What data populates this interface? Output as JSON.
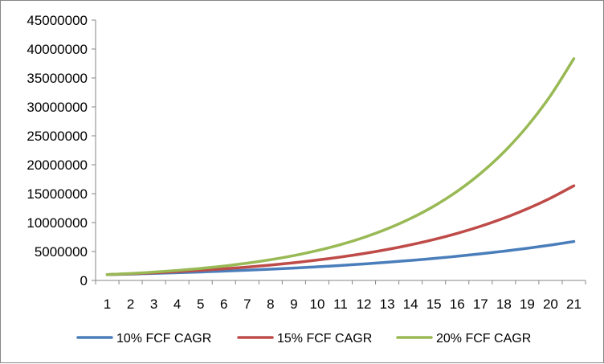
{
  "chart_data": {
    "type": "line",
    "title": "",
    "xlabel": "",
    "ylabel": "",
    "grid": false,
    "legend_position": "bottom",
    "ylim": [
      0,
      45000000
    ],
    "yticks": [
      0,
      5000000,
      10000000,
      15000000,
      20000000,
      25000000,
      30000000,
      35000000,
      40000000,
      45000000
    ],
    "categories": [
      1,
      2,
      3,
      4,
      5,
      6,
      7,
      8,
      9,
      10,
      11,
      12,
      13,
      14,
      15,
      16,
      17,
      18,
      19,
      20,
      21
    ],
    "series": [
      {
        "name": "10% FCF CAGR",
        "color": "#4a7ebb",
        "values": [
          1000000,
          1100000,
          1210000,
          1331000,
          1464100,
          1610510,
          1771561,
          1948717,
          2143589,
          2357948,
          2593742,
          2853117,
          3138428,
          3452271,
          3797498,
          4177248,
          4594973,
          5054470,
          5559917,
          6115909,
          6727500
        ]
      },
      {
        "name": "15% FCF CAGR",
        "color": "#be4b48",
        "values": [
          1000000,
          1150000,
          1322500,
          1520875,
          1749006,
          2011357,
          2313061,
          2660020,
          3059023,
          3517876,
          4045558,
          4652391,
          5350250,
          6152788,
          7075706,
          8137062,
          9357621,
          10761264,
          12375454,
          14231772,
          16366537
        ]
      },
      {
        "name": "20% FCF CAGR",
        "color": "#98b954",
        "values": [
          1000000,
          1200000,
          1440000,
          1728000,
          2073600,
          2488320,
          2985984,
          3583181,
          4299817,
          5159780,
          6191736,
          7430084,
          8916100,
          10699321,
          12839185,
          15407022,
          18488426,
          22186111,
          26623333,
          31948000,
          38337600
        ]
      }
    ]
  }
}
